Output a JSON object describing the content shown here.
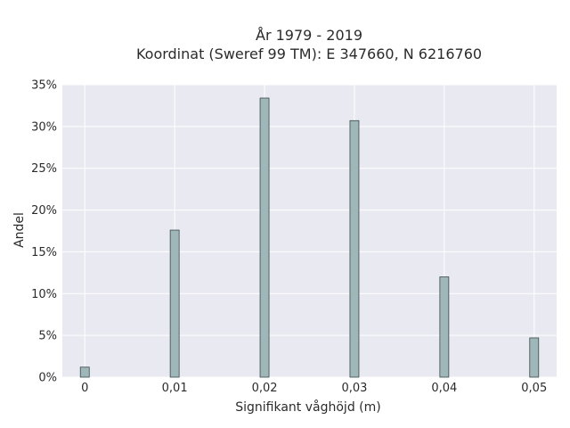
{
  "chart_data": {
    "type": "bar",
    "title": "År 1979 - 2019",
    "subtitle": "Koordinat (Sweref 99 TM): E 347660, N 6216760",
    "xlabel": "Signifikant våghöjd (m)",
    "ylabel": "Andel",
    "x": [
      0,
      0.01,
      0.02,
      0.03,
      0.04,
      0.05
    ],
    "values": [
      0.012,
      0.176,
      0.334,
      0.307,
      0.12,
      0.047
    ],
    "xticks": [
      "0",
      "0,01",
      "0,02",
      "0,03",
      "0,04",
      "0,05"
    ],
    "yticks": [
      "0%",
      "5%",
      "10%",
      "15%",
      "20%",
      "25%",
      "30%",
      "35%"
    ],
    "xlim": [
      -0.0025,
      0.0525
    ],
    "ylim": [
      0,
      0.35
    ],
    "grid": true,
    "colors": {
      "bar_fill": "#9fb7b8",
      "bar_stroke": "#3a4a4a",
      "plot_bg": "#e9e9f1",
      "grid": "#ffffff"
    }
  }
}
